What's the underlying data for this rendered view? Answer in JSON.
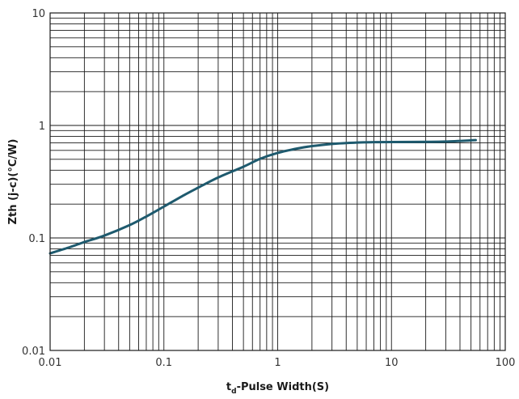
{
  "chart_data": {
    "type": "line",
    "title": "",
    "xlabel_main": "t",
    "xlabel_sub": "d",
    "xlabel_rest": "-Pulse Width(S)",
    "ylabel": "Zth (j-c)(°C/W)",
    "x_scale": "log",
    "y_scale": "log",
    "xlim": [
      0.01,
      100
    ],
    "ylim": [
      0.01,
      10
    ],
    "grid": true,
    "legend": "none",
    "x_ticks": [
      {
        "value": 0.01,
        "label": "0.01"
      },
      {
        "value": 0.1,
        "label": "0.1"
      },
      {
        "value": 1,
        "label": "1"
      },
      {
        "value": 10,
        "label": "10"
      },
      {
        "value": 100,
        "label": "100"
      }
    ],
    "y_ticks": [
      {
        "value": 0.01,
        "label": "0.01"
      },
      {
        "value": 0.1,
        "label": "0.1"
      },
      {
        "value": 1,
        "label": "1"
      },
      {
        "value": 10,
        "label": "10"
      }
    ],
    "series": [
      {
        "color": "#1e5a6e",
        "x": [
          0.01,
          0.015,
          0.02,
          0.03,
          0.05,
          0.07,
          0.1,
          0.15,
          0.2,
          0.3,
          0.5,
          0.7,
          1,
          1.5,
          2,
          3,
          5,
          7,
          10,
          20,
          30,
          55
        ],
        "y": [
          0.073,
          0.083,
          0.092,
          0.105,
          0.13,
          0.155,
          0.19,
          0.24,
          0.28,
          0.345,
          0.43,
          0.505,
          0.57,
          0.625,
          0.655,
          0.685,
          0.705,
          0.71,
          0.712,
          0.715,
          0.72,
          0.74
        ]
      }
    ]
  }
}
